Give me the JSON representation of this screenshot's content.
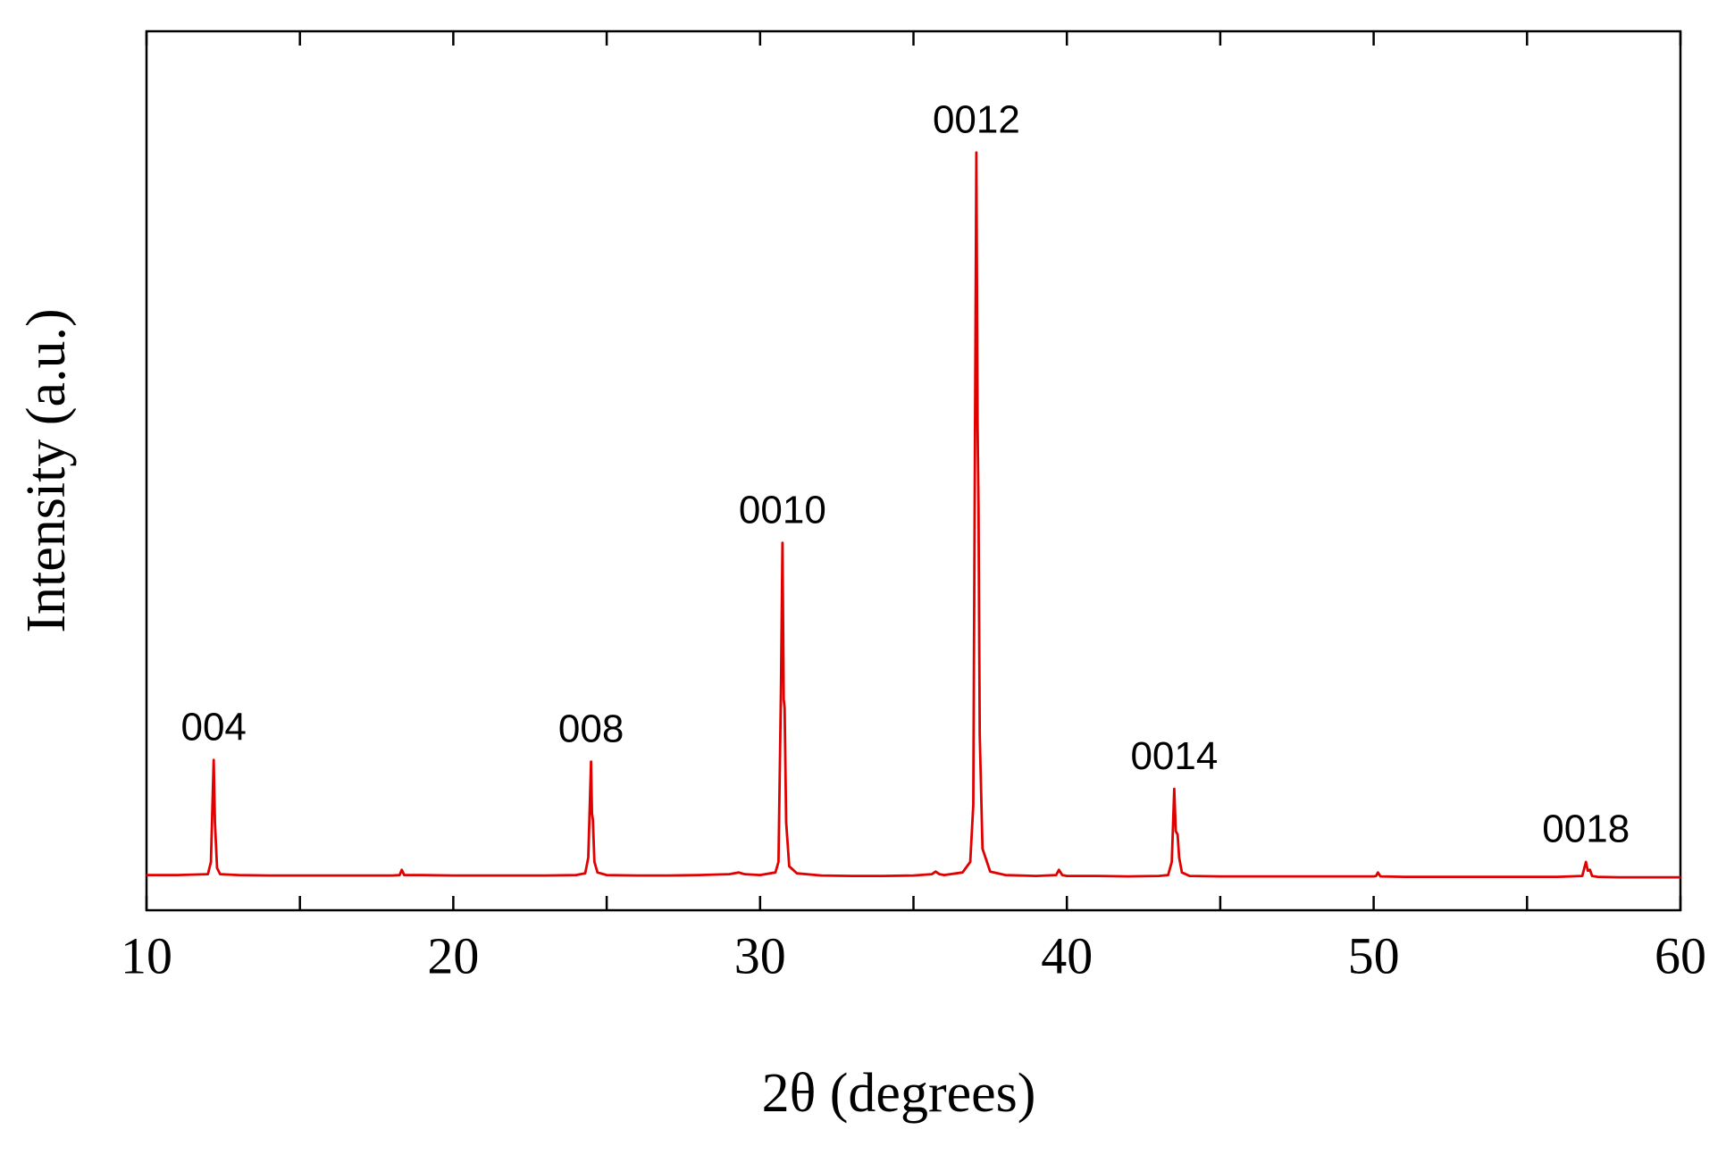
{
  "chart_data": {
    "type": "line",
    "x_label": "2θ (degrees)",
    "y_label": "Intensity (a.u.)",
    "color": "#e00000",
    "xlim": [
      10,
      60
    ],
    "xticks": [
      10,
      20,
      30,
      40,
      50,
      60
    ],
    "x_minor_ticks": [
      15,
      25,
      35,
      45,
      55
    ],
    "ylim": [
      0,
      100
    ],
    "annotations": [
      "004",
      "008",
      "0010",
      "0012",
      "0014",
      "0018"
    ],
    "x": [
      10,
      11,
      12.0,
      12.1,
      12.15,
      12.19,
      12.23,
      12.3,
      12.4,
      13,
      14,
      15,
      16,
      17,
      18,
      18.25,
      18.32,
      18.4,
      19,
      20,
      21,
      22,
      23,
      24,
      24.3,
      24.4,
      24.45,
      24.49,
      24.52,
      24.55,
      24.6,
      24.7,
      25,
      26,
      27,
      28,
      29,
      29.3,
      29.5,
      30,
      30.5,
      30.6,
      30.68,
      30.73,
      30.77,
      30.8,
      30.85,
      30.95,
      31.2,
      32,
      33,
      34,
      35,
      35.6,
      35.72,
      35.85,
      36,
      36.6,
      36.85,
      36.95,
      37.0,
      37.05,
      37.09,
      37.12,
      37.16,
      37.25,
      37.5,
      38,
      39,
      39.65,
      39.74,
      39.85,
      40,
      41,
      42,
      43,
      43.3,
      43.42,
      43.5,
      43.55,
      43.61,
      43.66,
      43.75,
      44,
      45,
      46,
      47,
      48,
      49,
      50,
      50.08,
      50.14,
      50.22,
      51,
      52,
      53,
      54,
      55,
      56,
      56.8,
      56.92,
      56.98,
      57.05,
      57.12,
      57.3,
      58,
      59,
      60
    ],
    "values": [
      4.0,
      4.0,
      4.1,
      5.5,
      12,
      17.1,
      10,
      4.8,
      4.1,
      4.0,
      3.95,
      3.95,
      3.95,
      3.95,
      3.95,
      4.0,
      4.6,
      4.0,
      4.0,
      3.95,
      3.95,
      3.95,
      3.95,
      4.0,
      4.2,
      6,
      12,
      16.9,
      11,
      10.3,
      5.5,
      4.3,
      4.0,
      3.95,
      3.95,
      4.0,
      4.1,
      4.3,
      4.1,
      4.0,
      4.3,
      5.5,
      25,
      41.8,
      24,
      23,
      10,
      5,
      4.2,
      3.95,
      3.9,
      3.9,
      3.95,
      4.1,
      4.4,
      4.1,
      4.0,
      4.3,
      5.5,
      12,
      50,
      86.2,
      55,
      45.9,
      20,
      7,
      4.4,
      4.0,
      3.9,
      4.0,
      4.6,
      4.0,
      3.9,
      3.9,
      3.85,
      3.9,
      4.0,
      5.5,
      13.8,
      9,
      8.6,
      6,
      4.3,
      3.9,
      3.85,
      3.85,
      3.85,
      3.85,
      3.85,
      3.85,
      3.9,
      4.3,
      3.85,
      3.8,
      3.8,
      3.8,
      3.8,
      3.8,
      3.8,
      3.9,
      5.5,
      4.5,
      4.6,
      3.9,
      3.8,
      3.75,
      3.75,
      3.75
    ]
  }
}
